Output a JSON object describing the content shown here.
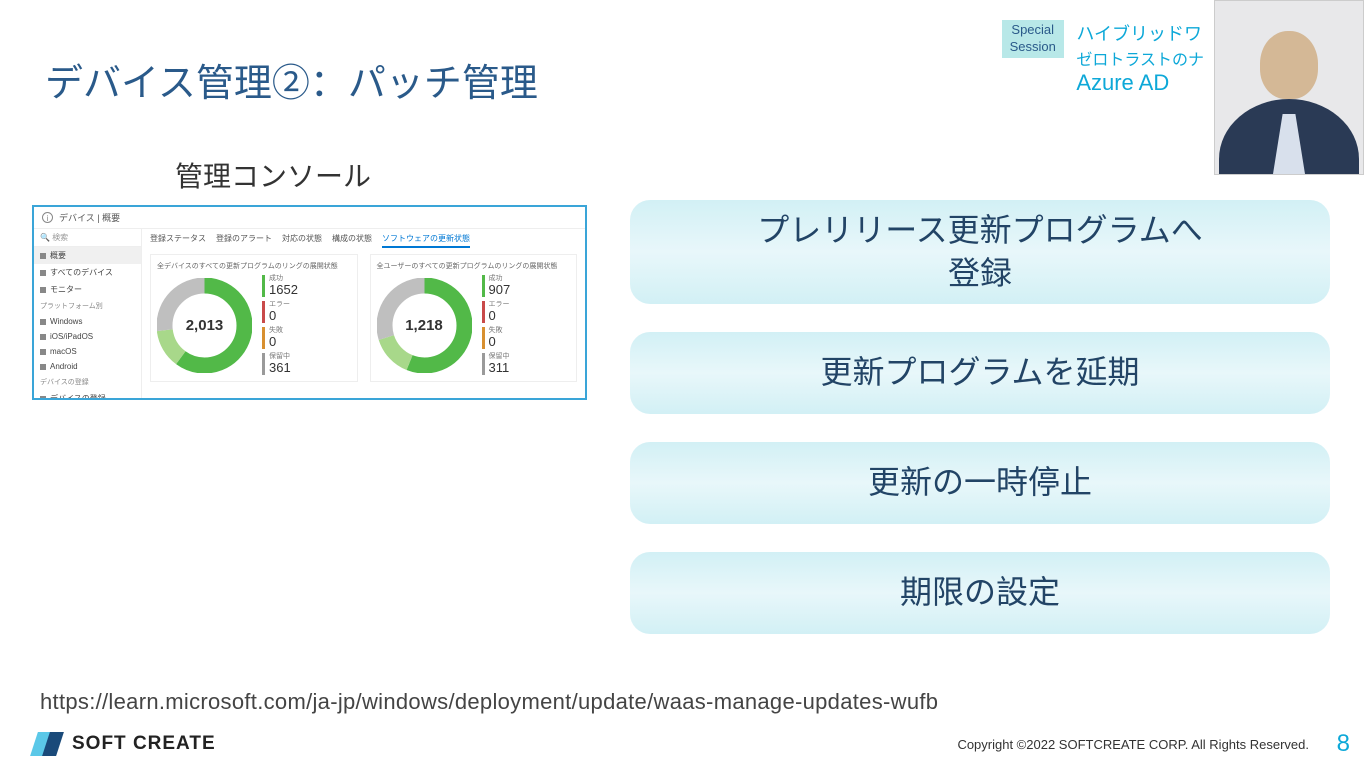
{
  "title": "デバイス管理②：パッチ管理",
  "header": {
    "badge_line1": "Special",
    "badge_line2": "Session",
    "line1": "ハイブリッドワ",
    "line2": "ゼロトラストのナ",
    "line3": "Azure AD"
  },
  "console_label": "管理コンソール",
  "console": {
    "breadcrumb": "デバイス | 概要",
    "search_placeholder": "検索",
    "sidebar": {
      "items": [
        {
          "label": "概要",
          "hl": true
        },
        {
          "label": "すべてのデバイス"
        },
        {
          "label": "モニター"
        }
      ],
      "group1": "プラットフォーム別",
      "platforms": [
        {
          "label": "Windows"
        },
        {
          "label": "iOS/iPadOS"
        },
        {
          "label": "macOS"
        },
        {
          "label": "Android"
        }
      ],
      "group2": "デバイスの登録",
      "footer_item": "デバイスの登録"
    },
    "tabs": [
      "登録ステータス",
      "登録のアラート",
      "対応の状態",
      "構成の状態",
      "ソフトウェアの更新状態"
    ],
    "active_tab_index": 4,
    "charts": [
      {
        "title": "全デバイスのすべての更新プログラムのリングの展開状態",
        "center": "2,013",
        "donut": {
          "segments": [
            {
              "color": "#52b948",
              "fraction": 0.6
            },
            {
              "color": "#a8d88a",
              "fraction": 0.13
            },
            {
              "color": "#bfbfbf",
              "fraction": 0.27
            }
          ],
          "hole": 0.6
        },
        "legend": [
          {
            "label": "成功",
            "value": "1652",
            "color": "#52b948"
          },
          {
            "label": "エラー",
            "value": "0",
            "color": "#c94a4a"
          },
          {
            "label": "失敗",
            "value": "0",
            "color": "#d89030"
          },
          {
            "label": "保留中",
            "value": "361",
            "color": "#9a9a9a"
          }
        ]
      },
      {
        "title": "全ユーザーのすべての更新プログラムのリングの展開状態",
        "center": "1,218",
        "donut": {
          "segments": [
            {
              "color": "#52b948",
              "fraction": 0.56
            },
            {
              "color": "#a8d88a",
              "fraction": 0.14
            },
            {
              "color": "#bfbfbf",
              "fraction": 0.3
            }
          ],
          "hole": 0.6
        },
        "legend": [
          {
            "label": "成功",
            "value": "907",
            "color": "#52b948"
          },
          {
            "label": "エラー",
            "value": "0",
            "color": "#c94a4a"
          },
          {
            "label": "失敗",
            "value": "0",
            "color": "#d89030"
          },
          {
            "label": "保留中",
            "value": "311",
            "color": "#9a9a9a"
          }
        ]
      }
    ]
  },
  "pills": [
    "プレリリース更新プログラムへ\n登録",
    "更新プログラムを延期",
    "更新の一時停止",
    "期限の設定"
  ],
  "url": "https://learn.microsoft.com/ja-jp/windows/deployment/update/waas-manage-updates-wufb",
  "logo_text": "SOFT CREATE",
  "copyright": "Copyright ©2022 SOFTCREATE CORP. All Rights Reserved.",
  "page_number": "8",
  "colors": {
    "title": "#2a5a8a",
    "accent": "#0da8d8",
    "pill_text": "#224466",
    "console_border": "#3aa5d8"
  }
}
